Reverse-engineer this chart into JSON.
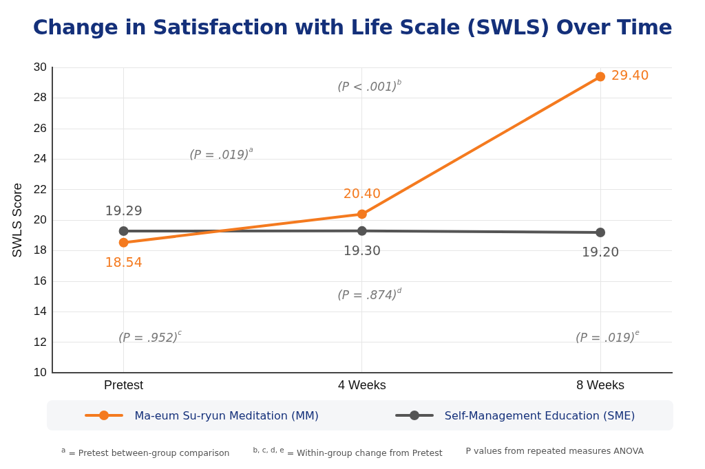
{
  "chart_data": {
    "type": "line",
    "title": "Change in Satisfaction with Life Scale (SWLS) Over Time",
    "ylabel": "SWLS Score",
    "categories": [
      "Pretest",
      "4 Weeks",
      "8 Weeks"
    ],
    "series": [
      {
        "name": "Ma-eum Su-ryun Meditation (MM)",
        "color": "#f47a1f",
        "values": [
          18.54,
          20.4,
          29.4
        ],
        "value_labels": [
          "18.54",
          "20.40",
          "29.40"
        ]
      },
      {
        "name": "Self-Management Education (SME)",
        "color": "#555555",
        "values": [
          19.29,
          19.3,
          19.2
        ],
        "value_labels": [
          "19.29",
          "19.30",
          "19.20"
        ]
      }
    ],
    "ylim": [
      10,
      30
    ],
    "yticks": [
      10,
      12,
      14,
      16,
      18,
      20,
      22,
      24,
      26,
      28,
      30
    ],
    "grid": true,
    "legend": "bottom",
    "marker": "circle",
    "line_style": "solid",
    "annotations": [
      "(P = .019)$^{a}$",
      "(P < .001)$^{b}$",
      "(P = .952)$^{c}$",
      "(P = .874)$^{d}$",
      "(P = .019)$^{e}$",
      "$^{a}$ = Pretest between-group comparison",
      "$^{b, c, d, e}$ = Within-group change from Pretest",
      "P values from repeated measures ANOVA"
    ]
  }
}
